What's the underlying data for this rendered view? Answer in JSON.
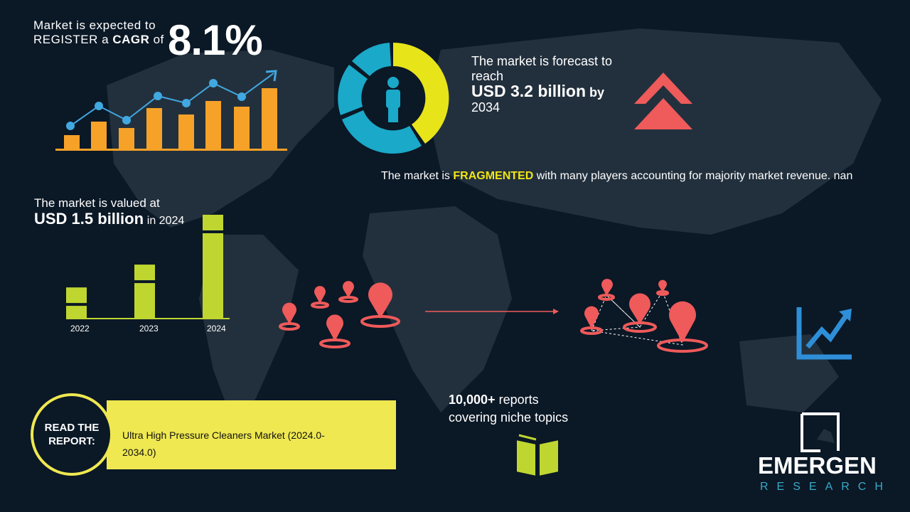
{
  "cagr": {
    "line1": "Market is expected to",
    "line2_pre": "REGISTER a ",
    "line2_bold": "CAGR",
    "line2_post": " of",
    "value": "8.1%"
  },
  "forecast": {
    "line1": "The market is forecast to reach",
    "value": "USD 3.2 billion",
    "by": "by",
    "year": "2034"
  },
  "fragmented": {
    "pre": "The market is ",
    "highlight": "FRAGMENTED",
    "post": " with many players accounting for majority market revenue. nan"
  },
  "valued": {
    "line1": "The market is valued at",
    "value": "USD 1.5 billion",
    "post": "in 2024"
  },
  "year_bars": [
    {
      "label": "2022",
      "level": 0.3
    },
    {
      "label": "2023",
      "level": 0.52
    },
    {
      "label": "2024",
      "level": 1.0
    }
  ],
  "reports": {
    "count": "10,000+",
    "line1_post": " reports",
    "line2": "covering niche topics"
  },
  "read_report": {
    "label": "READ THE REPORT:",
    "title": "Ultra High Pressure Cleaners Market (2024.0-2034.0)"
  },
  "logo": {
    "name": "EMERGEN",
    "sub": "RESEARCH"
  },
  "colors": {
    "background": "#0b1826",
    "orange": "#f6a128",
    "blue": "#41a8e0",
    "yellow": "#efe851",
    "green": "#bfd630",
    "red": "#ef5a5a",
    "teal": "#1aa9c9"
  },
  "icons": [
    "growth-chart-icon",
    "donut-person-icon",
    "double-chevron-up-icon",
    "location-pin-icon",
    "network-pins-icon",
    "trend-up-icon",
    "book-icon"
  ]
}
